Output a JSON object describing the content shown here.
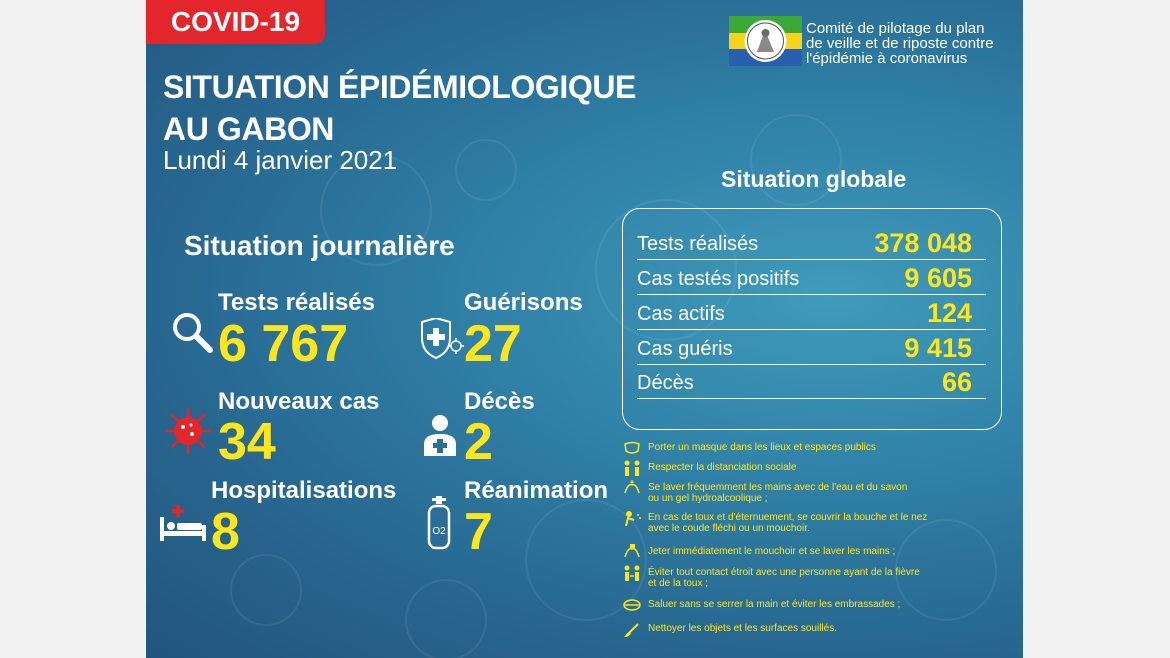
{
  "tag": "COVID-19",
  "title": {
    "line1": "SITUATION ÉPIDÉMIOLOGIQUE",
    "line2": "AU GABON",
    "date": "Lundi 4 janvier 2021"
  },
  "committee": {
    "line1": "Comité de pilotage du plan",
    "line2": "de veille et de riposte contre",
    "line3": "l'épidémie à coronavirus"
  },
  "daily": {
    "title": "Situation journalière",
    "items": [
      {
        "label": "Tests réalisés",
        "value": "6 767",
        "icon": "magnifier-icon"
      },
      {
        "label": "Guérisons",
        "value": "27",
        "icon": "shield-cross-icon"
      },
      {
        "label": "Nouveaux cas",
        "value": "34",
        "icon": "virus-icon"
      },
      {
        "label": "Décès",
        "value": "2",
        "icon": "person-cross-icon"
      },
      {
        "label": "Hospitalisations",
        "value": "8",
        "icon": "hospital-bed-icon"
      },
      {
        "label": "Réanimation",
        "value": "7",
        "icon": "oxygen-tank-icon"
      }
    ]
  },
  "global": {
    "title": "Situation globale",
    "rows": [
      {
        "label": "Tests réalisés",
        "value": "378 048"
      },
      {
        "label": "Cas testés positifs",
        "value": "9 605"
      },
      {
        "label": "Cas actifs",
        "value": "124"
      },
      {
        "label": "Cas guéris",
        "value": "9 415"
      },
      {
        "label": "Décès",
        "value": "66"
      }
    ]
  },
  "advice": [
    {
      "line1": "Porter un masque dans les lieux et espaces publics",
      "line2": "",
      "icon": "mask-icon"
    },
    {
      "line1": "Respecter la distanciation sociale",
      "line2": "",
      "icon": "distancing-icon"
    },
    {
      "line1": "Se laver fréquemment les mains avec de l'eau et du savon",
      "line2": " ou un gel hydroalcoolique ;",
      "icon": "hand-wash-icon"
    },
    {
      "line1": "En cas de toux et d'éternuement, se couvrir la bouche et le nez",
      "line2": " avec le coude fléchi ou un mouchoir.",
      "icon": "cough-icon"
    },
    {
      "line1": "Jeter immédiatement le mouchoir et se laver les mains ;",
      "line2": "",
      "icon": "tissue-icon"
    },
    {
      "line1": "Éviter tout contact étroit avec une personne ayant de la fièvre",
      "line2": " et de la toux ;",
      "icon": "avoid-contact-icon"
    },
    {
      "line1": "Saluer sans se serrer la main et éviter les embrassades ;",
      "line2": "",
      "icon": "no-handshake-icon"
    },
    {
      "line1": "Nettoyer les objets et les surfaces souillés.",
      "line2": "",
      "icon": "cleaning-icon"
    }
  ],
  "colors": {
    "accent": "#ffe61a",
    "tag": "#e3262b",
    "background": "#2a6f98"
  }
}
